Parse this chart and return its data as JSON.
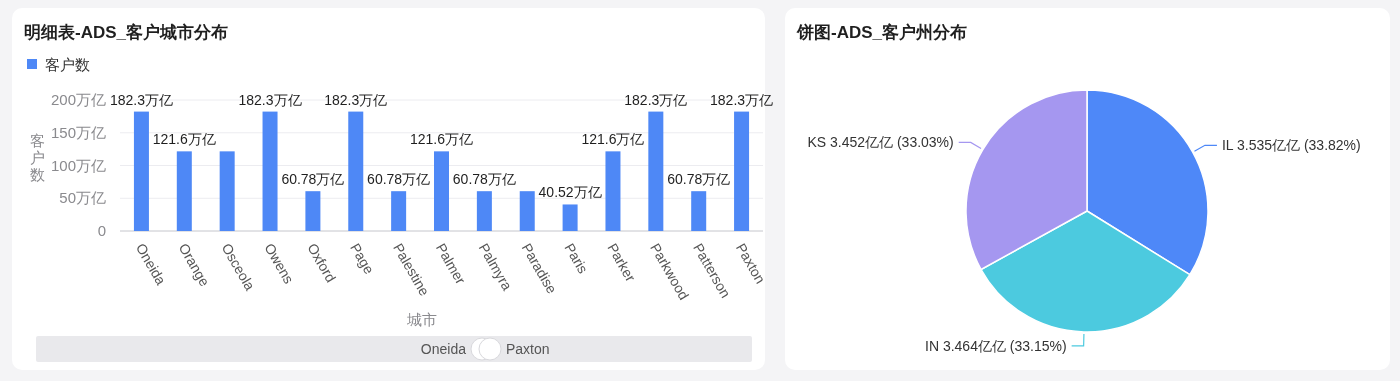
{
  "chart_data": [
    {
      "type": "bar",
      "title": "明细表-ADS_客户城市分布",
      "xlabel": "城市",
      "ylabel": "客户数",
      "categories": [
        "Oneida",
        "Orange",
        "Osceola",
        "Owens",
        "Oxford",
        "Page",
        "Palestine",
        "Palmer",
        "Palmyra",
        "Paradise",
        "Paris",
        "Parker",
        "Parkwood",
        "Patterson",
        "Paxton"
      ],
      "series": [
        {
          "name": "客户数",
          "color": "#4e88f6",
          "values": [
            182.3,
            121.6,
            121.6,
            182.3,
            60.78,
            182.3,
            60.78,
            121.6,
            60.78,
            60.78,
            40.52,
            121.6,
            182.3,
            60.78,
            182.3
          ],
          "value_labels": [
            "182.3万亿",
            "121.6万亿",
            null,
            "182.3万亿",
            "60.78万亿",
            "182.3万亿",
            "60.78万亿",
            "121.6万亿",
            "60.78万亿",
            null,
            "40.52万亿",
            "121.6万亿",
            "182.3万亿",
            "60.78万亿",
            "182.3万亿"
          ]
        }
      ],
      "ylim": [
        0,
        200
      ],
      "yticks": [
        0,
        {
          "value": 50,
          "label": "50万亿"
        },
        {
          "value": 100,
          "label": "100万亿"
        },
        {
          "value": 150,
          "label": "150万亿"
        },
        {
          "value": 200,
          "label": "200万亿"
        }
      ],
      "grid": "y",
      "legend": "top left",
      "annotations": [
        "Oneida",
        "Paxton"
      ]
    },
    {
      "type": "pie",
      "title": "饼图-ADS_客户州分布",
      "categories": [
        "IL",
        "IN",
        "KS"
      ],
      "values": [
        3.535,
        3.464,
        3.452
      ],
      "colors": [
        "#4e88f8",
        "#4ccadf",
        "#a597f0"
      ],
      "value_labels": [
        "3.535亿亿 (33.82%)",
        "3.464亿亿 (33.15%)",
        "3.452亿亿 (33.03%)"
      ]
    }
  ]
}
